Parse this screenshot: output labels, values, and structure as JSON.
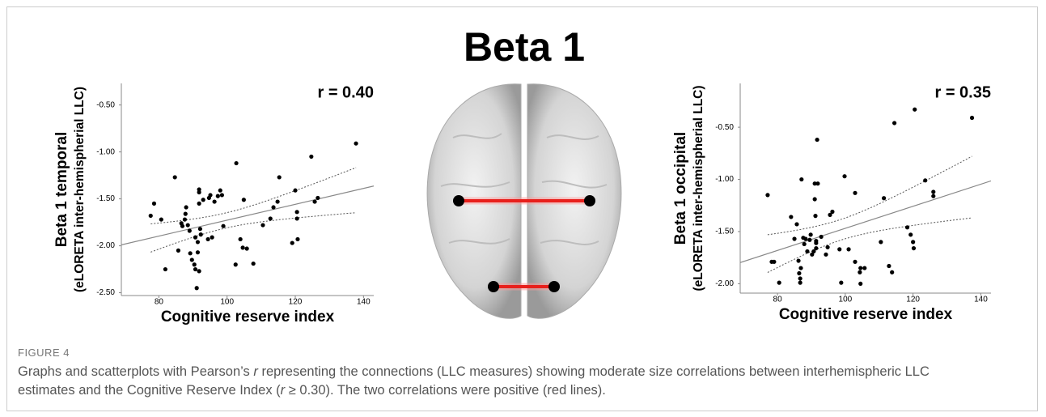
{
  "figure_title": "Beta 1",
  "figure_label": "FIGURE 4",
  "caption": [
    "Graphs and scatterplots with Pearson’s ",
    "r",
    " representing the connections (LLC measures) showing moderate size correlations between interhemispheric LLC estimates and the Cognitive Reserve Index (",
    "r",
    " ≥ 0.30). The two correlations were positive (red lines)."
  ],
  "chart_data": [
    {
      "type": "scatter",
      "ylabel": "Beta 1 temporal",
      "ylabel_sub": "(eLORETA inter-hemispherial LLC)",
      "xlabel": "Cognitive reserve index",
      "annotation": "r = 0.40",
      "color": "#000000",
      "x": [
        77.6,
        78.6,
        80.7,
        81.9,
        84.7,
        85.7,
        86.6,
        86.9,
        87.6,
        87.8,
        88.0,
        88.5,
        89.0,
        89.2,
        89.7,
        90.4,
        90.7,
        90.7,
        91.1,
        91.4,
        91.4,
        91.8,
        91.8,
        91.8,
        91.8,
        92.1,
        92.3,
        93.0,
        94.4,
        94.7,
        95.1,
        95.6,
        96.3,
        97.3,
        98.0,
        98.5,
        98.9,
        102.5,
        102.7,
        103.9,
        104.6,
        104.9,
        105.8,
        107.7,
        110.5,
        112.7,
        113.6,
        114.8,
        115.3,
        119.1,
        120.0,
        120.5,
        120.5,
        120.7,
        124.7,
        125.7,
        126.6,
        137.8
      ],
      "y": [
        -1.68,
        -1.55,
        -1.72,
        -2.25,
        -1.27,
        -2.05,
        -1.76,
        -1.79,
        -1.72,
        -1.66,
        -1.59,
        -1.78,
        -1.84,
        -2.08,
        -2.15,
        -2.2,
        -1.91,
        -2.25,
        -2.45,
        -1.96,
        -2.07,
        -2.27,
        -1.4,
        -1.43,
        -1.55,
        -1.82,
        -1.88,
        -1.51,
        -1.93,
        -1.49,
        -1.46,
        -1.91,
        -1.53,
        -1.47,
        -1.41,
        -1.46,
        -1.79,
        -2.2,
        -1.12,
        -1.93,
        -2.02,
        -1.51,
        -2.03,
        -2.19,
        -1.78,
        -1.71,
        -1.59,
        -1.53,
        -1.27,
        -1.97,
        -1.41,
        -1.64,
        -1.71,
        -1.93,
        -1.05,
        -1.53,
        -1.49,
        -0.91
      ],
      "xlim": [
        69,
        143
      ],
      "xticks": [
        80,
        100,
        120,
        140
      ],
      "ylim": [
        -2.53,
        -0.27
      ],
      "yticks": [
        {
          "value": -2.5,
          "label": "-2.50"
        },
        {
          "value": -2.0,
          "label": "-2.00"
        },
        {
          "value": -1.5,
          "label": "-1.50"
        },
        {
          "value": -1.0,
          "label": "-1.00"
        },
        {
          "value": -0.5,
          "label": "-0.50"
        }
      ]
    },
    {
      "type": "scatter",
      "ylabel": "Beta 1 occipital",
      "ylabel_sub": "(eLORETA inter-hemispherial LLC)",
      "xlabel": "Cognitive reserve index",
      "annotation": "r = 0.35",
      "color": "#000000",
      "x": [
        77.1,
        78.3,
        79.0,
        80.5,
        84.0,
        85.0,
        85.7,
        86.2,
        86.4,
        86.7,
        86.7,
        86.9,
        87.1,
        87.6,
        87.9,
        88.3,
        88.8,
        89.5,
        89.8,
        90.2,
        90.7,
        91.0,
        91.0,
        91.2,
        91.4,
        91.4,
        91.4,
        91.7,
        91.9,
        92.9,
        94.3,
        94.8,
        95.5,
        96.2,
        98.3,
        98.8,
        99.8,
        101.0,
        102.9,
        102.9,
        104.3,
        104.5,
        104.5,
        105.7,
        110.5,
        111.4,
        112.9,
        113.8,
        114.5,
        118.3,
        119.3,
        120.0,
        120.2,
        120.5,
        123.6,
        126.0,
        126.0,
        137.4
      ],
      "y": [
        -1.15,
        -1.79,
        -1.79,
        -1.99,
        -1.36,
        -1.57,
        -1.43,
        -1.78,
        -1.9,
        -1.95,
        -1.99,
        -1.85,
        -1.0,
        -1.56,
        -1.62,
        -1.57,
        -1.69,
        -1.58,
        -1.53,
        -1.72,
        -1.69,
        -1.04,
        -1.19,
        -1.35,
        -1.59,
        -1.61,
        -1.66,
        -0.62,
        -1.04,
        -1.55,
        -1.72,
        -1.65,
        -1.34,
        -1.31,
        -1.67,
        -1.99,
        -0.97,
        -1.67,
        -1.13,
        -1.79,
        -1.89,
        -2.0,
        -1.85,
        -1.85,
        -1.6,
        -1.18,
        -1.83,
        -1.89,
        -0.46,
        -1.46,
        -1.53,
        -1.6,
        -1.66,
        -0.33,
        -1.01,
        -1.16,
        -1.12,
        -0.41
      ],
      "xlim": [
        69,
        143
      ],
      "xticks": [
        80,
        100,
        120,
        140
      ],
      "ylim": [
        -2.09,
        -0.08
      ],
      "yticks": [
        {
          "value": -2.0,
          "label": "-2.00"
        },
        {
          "value": -1.5,
          "label": "-1.50"
        },
        {
          "value": -1.0,
          "label": "-1.00"
        },
        {
          "value": -0.5,
          "label": "-0.50"
        }
      ]
    }
  ]
}
